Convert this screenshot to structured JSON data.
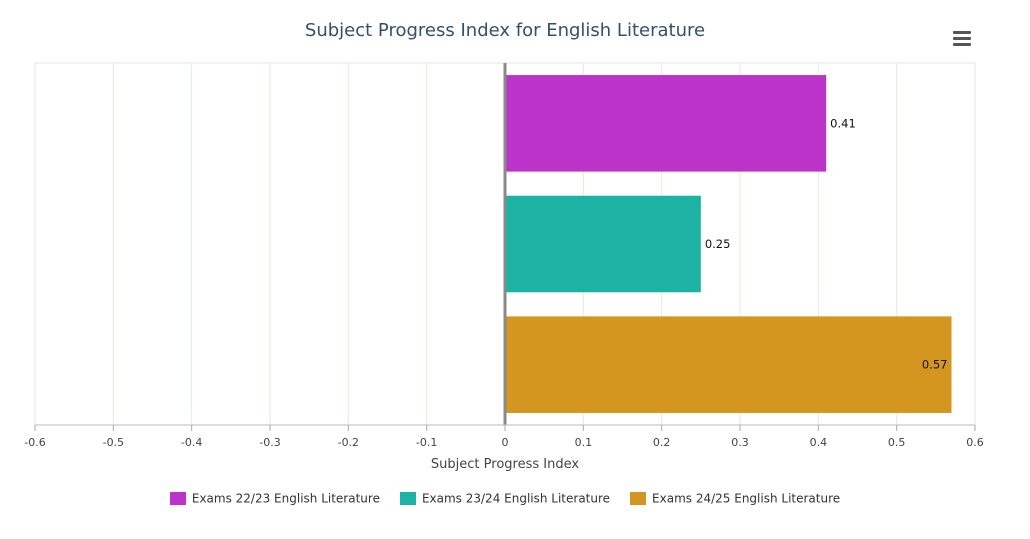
{
  "chart_data": {
    "type": "bar",
    "orientation": "horizontal",
    "title": "Subject Progress Index for English Literature",
    "xlabel": "Subject Progress Index",
    "ylabel": "",
    "xlim": [
      -0.6,
      0.6
    ],
    "xticks": [
      -0.6,
      -0.5,
      -0.4,
      -0.3,
      -0.2,
      -0.1,
      0,
      0.1,
      0.2,
      0.3,
      0.4,
      0.5,
      0.6
    ],
    "series": [
      {
        "name": "Exams 22/23 English Literature",
        "value": 0.41,
        "label": "0.41",
        "color": "#bb33c8"
      },
      {
        "name": "Exams 23/24 English Literature",
        "value": 0.25,
        "label": "0.25",
        "color": "#1cb3a5"
      },
      {
        "name": "Exams 24/25 English Literature",
        "value": 0.57,
        "label": "0.57",
        "color": "#d4961f"
      }
    ],
    "grid": true,
    "legend_position": "bottom"
  },
  "toolbar": {
    "menu_icon": "hamburger-menu-icon"
  }
}
